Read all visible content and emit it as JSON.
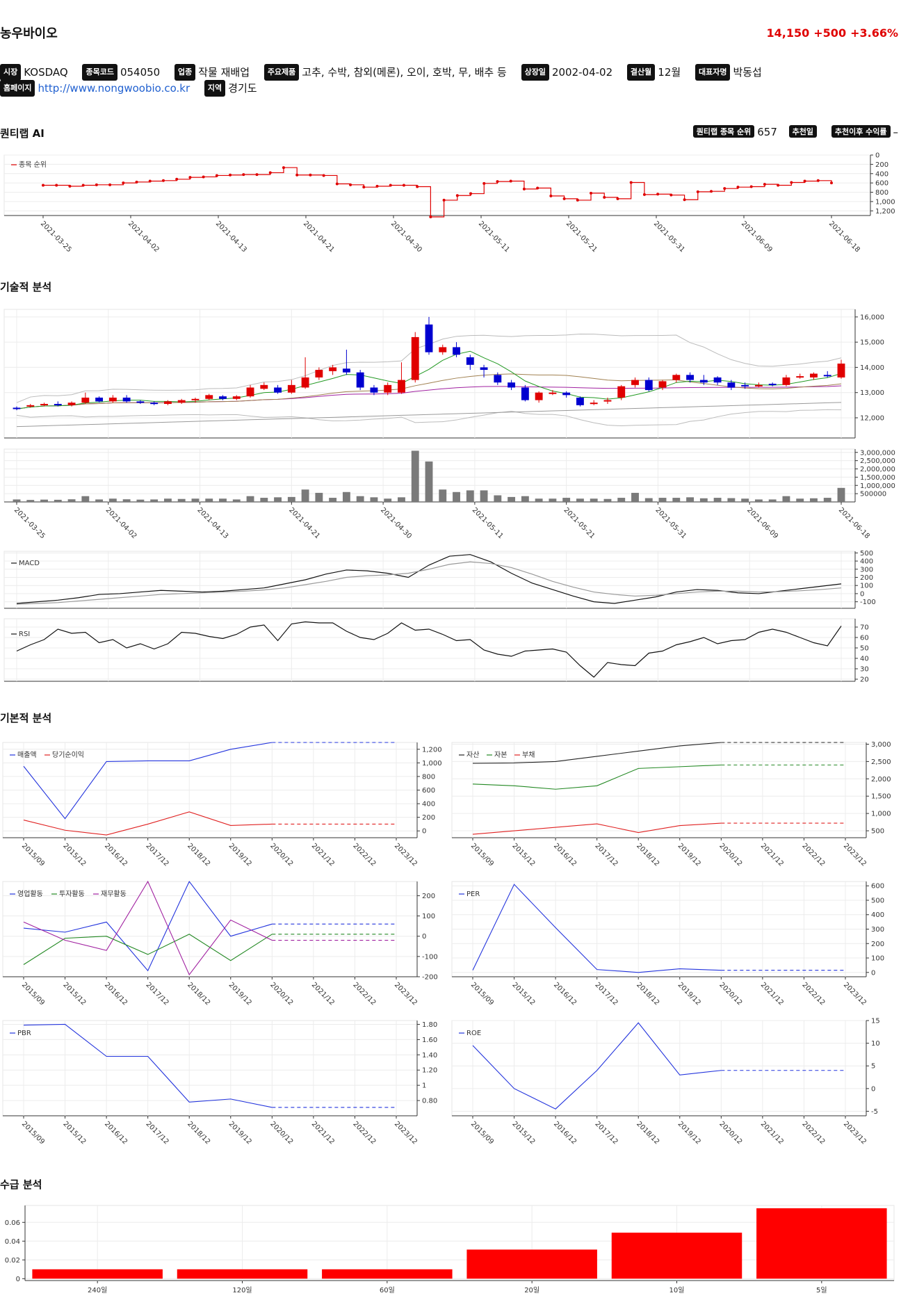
{
  "header": {
    "name": "농우바이오",
    "price": "14,150",
    "change": "+500",
    "change_pct": "+3.66%"
  },
  "info": {
    "market_label": "시장",
    "market": "KOSDAQ",
    "code_label": "종목코드",
    "code": "054050",
    "sector_label": "업종",
    "sector": "작물 재배업",
    "products_label": "주요제품",
    "products": "고추, 수박, 참외(메론), 오이, 호박, 무, 배추 등",
    "listing_label": "상장일",
    "listing": "2002-04-02",
    "fiscal_label": "결산월",
    "fiscal": "12월",
    "ceo_label": "대표자명",
    "ceo": "박동섭",
    "homepage_label": "홈페이지",
    "homepage": "http://www.nongwoobio.co.kr",
    "region_label": "지역",
    "region": "경기도"
  },
  "sections": {
    "quant": "퀀티랩 AI",
    "technical": "기술적 분석",
    "fundamental": "기본적 분석",
    "supply": "수급 분석"
  },
  "quant": {
    "rank_label": "퀀티랩 종목 순위",
    "rank": "657",
    "rec_label": "추천일",
    "rec_value": "",
    "ret_label": "추천이후 수익률",
    "ret_value": "–"
  },
  "colors": {
    "up": "#e00000",
    "down": "#0000d0",
    "accent": "#e00000"
  },
  "chart_data": [
    {
      "id": "rank",
      "type": "line",
      "legend": [
        "종목 순위"
      ],
      "x_ticks": [
        "2021-03-25",
        "2021-04-02",
        "2021-04-13",
        "2021-04-21",
        "2021-04-30",
        "2021-05-11",
        "2021-05-21",
        "2021-05-31",
        "2021-06-09",
        "2021-06-18"
      ],
      "y_ticks": [
        "0",
        "200",
        "400",
        "600",
        "800",
        "1,000",
        "1,200"
      ],
      "ylim": [
        0,
        1300
      ],
      "y_inverted": true,
      "values": [
        650,
        650,
        670,
        650,
        640,
        640,
        600,
        580,
        560,
        550,
        520,
        480,
        470,
        440,
        430,
        420,
        420,
        380,
        270,
        430,
        430,
        440,
        620,
        640,
        690,
        670,
        650,
        650,
        680,
        1330,
        970,
        870,
        830,
        610,
        570,
        560,
        730,
        710,
        880,
        940,
        970,
        820,
        910,
        940,
        590,
        850,
        840,
        860,
        960,
        790,
        780,
        720,
        690,
        680,
        630,
        650,
        590,
        560,
        550,
        600
      ]
    },
    {
      "id": "price",
      "type": "candlestick",
      "x_ticks": [
        "2021-03-25",
        "2021-04-02",
        "2021-04-13",
        "2021-04-21",
        "2021-04-30",
        "2021-05-11",
        "2021-05-21",
        "2021-05-31",
        "2021-06-09",
        "2021-06-18"
      ],
      "y_ticks": [
        "12,000",
        "13,000",
        "14,000",
        "15,000",
        "16,000"
      ],
      "ylim": [
        11200,
        16300
      ],
      "candles": [
        [
          12400,
          12350,
          12450,
          12300
        ],
        [
          12450,
          12500,
          12550,
          12400
        ],
        [
          12500,
          12550,
          12600,
          12450
        ],
        [
          12550,
          12500,
          12650,
          12450
        ],
        [
          12500,
          12600,
          12650,
          12450
        ],
        [
          12600,
          12800,
          13000,
          12550
        ],
        [
          12800,
          12650,
          12850,
          12600
        ],
        [
          12650,
          12800,
          12900,
          12600
        ],
        [
          12800,
          12650,
          12900,
          12600
        ],
        [
          12650,
          12600,
          12700,
          12550
        ],
        [
          12600,
          12550,
          12650,
          12500
        ],
        [
          12550,
          12650,
          12700,
          12500
        ],
        [
          12600,
          12700,
          12750,
          12550
        ],
        [
          12700,
          12750,
          12800,
          12600
        ],
        [
          12750,
          12900,
          12950,
          12700
        ],
        [
          12850,
          12750,
          12900,
          12700
        ],
        [
          12750,
          12850,
          12900,
          12700
        ],
        [
          12850,
          13200,
          13300,
          12800
        ],
        [
          13150,
          13300,
          13400,
          13100
        ],
        [
          13200,
          13000,
          13300,
          12950
        ],
        [
          13000,
          13300,
          13500,
          12950
        ],
        [
          13200,
          13600,
          14400,
          13150
        ],
        [
          13600,
          13900,
          14000,
          13500
        ],
        [
          13850,
          14000,
          14100,
          13700
        ],
        [
          13950,
          13800,
          14700,
          13700
        ],
        [
          13800,
          13200,
          13900,
          13100
        ],
        [
          13200,
          13000,
          13300,
          12900
        ],
        [
          13000,
          13300,
          13400,
          12900
        ],
        [
          13000,
          13500,
          14200,
          12950
        ],
        [
          13500,
          15200,
          15400,
          13400
        ],
        [
          15700,
          14600,
          16000,
          14500
        ],
        [
          14600,
          14800,
          14900,
          14500
        ],
        [
          14800,
          14500,
          15000,
          14400
        ],
        [
          14400,
          14100,
          14500,
          13900
        ],
        [
          14000,
          13900,
          14100,
          13600
        ],
        [
          13700,
          13400,
          13800,
          13300
        ],
        [
          13400,
          13200,
          13500,
          13100
        ],
        [
          13200,
          12700,
          13300,
          12650
        ],
        [
          12700,
          13000,
          13050,
          12600
        ],
        [
          13000,
          13000,
          13100,
          12900
        ],
        [
          13000,
          12900,
          13050,
          12800
        ],
        [
          12800,
          12500,
          12850,
          12450
        ],
        [
          12550,
          12600,
          12700,
          12500
        ],
        [
          12650,
          12700,
          12800,
          12550
        ],
        [
          12800,
          13250,
          13300,
          12700
        ],
        [
          13300,
          13500,
          13600,
          13200
        ],
        [
          13500,
          13100,
          13600,
          13050
        ],
        [
          13200,
          13450,
          13500,
          13100
        ],
        [
          13500,
          13700,
          13750,
          13400
        ],
        [
          13700,
          13500,
          13800,
          13400
        ],
        [
          13500,
          13400,
          13700,
          13300
        ],
        [
          13600,
          13400,
          13650,
          13300
        ],
        [
          13400,
          13200,
          13500,
          13100
        ],
        [
          13300,
          13250,
          13400,
          13150
        ],
        [
          13300,
          13300,
          13400,
          13200
        ],
        [
          13350,
          13300,
          13400,
          13250
        ],
        [
          13300,
          13600,
          13700,
          13250
        ],
        [
          13600,
          13650,
          13750,
          13550
        ],
        [
          13600,
          13750,
          13800,
          13500
        ],
        [
          13700,
          13650,
          13850,
          13600
        ],
        [
          13600,
          14150,
          14300,
          13550
        ]
      ]
    },
    {
      "id": "volume",
      "type": "bar",
      "x_ticks": [
        "2021-03-25",
        "2021-04-02",
        "2021-04-13",
        "2021-04-21",
        "2021-04-30",
        "2021-05-11",
        "2021-05-21",
        "2021-05-31",
        "2021-06-09",
        "2021-06-18"
      ],
      "y_ticks": [
        "500000",
        "1,000,000",
        "1,500,000",
        "2,000,000",
        "2,500,000",
        "3,000,000"
      ],
      "ylim": [
        0,
        3200000
      ],
      "values": [
        150000,
        120000,
        140000,
        130000,
        160000,
        350000,
        150000,
        200000,
        160000,
        140000,
        150000,
        200000,
        180000,
        200000,
        200000,
        200000,
        150000,
        350000,
        250000,
        280000,
        300000,
        750000,
        550000,
        250000,
        600000,
        350000,
        280000,
        200000,
        280000,
        3100000,
        2450000,
        750000,
        600000,
        700000,
        700000,
        400000,
        300000,
        350000,
        200000,
        200000,
        250000,
        200000,
        200000,
        180000,
        250000,
        550000,
        230000,
        250000,
        250000,
        280000,
        220000,
        250000,
        230000,
        200000,
        150000,
        150000,
        350000,
        200000,
        220000,
        250000,
        850000
      ]
    },
    {
      "id": "macd",
      "type": "line",
      "legend": [
        "MACD"
      ],
      "y_ticks": [
        "-100",
        "0",
        "100",
        "200",
        "300",
        "400",
        "500"
      ],
      "ylim": [
        -180,
        520
      ],
      "series": [
        {
          "name": "MACD",
          "values": [
            -120,
            -100,
            -80,
            -50,
            -10,
            0,
            20,
            40,
            30,
            20,
            30,
            50,
            70,
            120,
            170,
            240,
            290,
            280,
            250,
            200,
            350,
            460,
            480,
            390,
            250,
            130,
            50,
            -30,
            -100,
            -120,
            -80,
            -40,
            20,
            50,
            40,
            10,
            0,
            30,
            60,
            90,
            120
          ]
        },
        {
          "name": "signal",
          "values": [
            -130,
            -120,
            -110,
            -90,
            -70,
            -50,
            -30,
            -10,
            0,
            10,
            20,
            30,
            45,
            70,
            110,
            150,
            200,
            220,
            230,
            250,
            300,
            360,
            390,
            370,
            320,
            240,
            150,
            80,
            20,
            -10,
            -30,
            -20,
            0,
            20,
            30,
            30,
            20,
            25,
            35,
            50,
            70
          ]
        }
      ]
    },
    {
      "id": "rsi",
      "type": "line",
      "legend": [
        "RSI"
      ],
      "y_ticks": [
        "20",
        "30",
        "40",
        "50",
        "60",
        "70"
      ],
      "ylim": [
        18,
        78
      ],
      "values": [
        47,
        53,
        58,
        68,
        64,
        65,
        55,
        58,
        50,
        54,
        49,
        54,
        65,
        64,
        61,
        59,
        63,
        70,
        72,
        57,
        73,
        75,
        74,
        74,
        66,
        60,
        58,
        64,
        74,
        67,
        68,
        63,
        57,
        58,
        48,
        44,
        42,
        47,
        48,
        49,
        46,
        33,
        22,
        36,
        34,
        33,
        45,
        47,
        53,
        56,
        60,
        54,
        57,
        58,
        65,
        68,
        65,
        60,
        55,
        52,
        71
      ]
    },
    {
      "id": "sales_profit",
      "type": "line",
      "legend": [
        "매출액",
        "당기순이익"
      ],
      "x_ticks": [
        "2015/09",
        "2015/12",
        "2016/12",
        "2017/12",
        "2018/12",
        "2019/12",
        "2020/12",
        "2021/12",
        "2022/12",
        "2023/12"
      ],
      "y_ticks": [
        "0",
        "200",
        "400",
        "600",
        "800",
        "1,000",
        "1,200"
      ],
      "ylim": [
        -100,
        1300
      ],
      "series": [
        {
          "name": "매출액",
          "values": [
            950,
            180,
            1020,
            1030,
            1030,
            1200,
            1300,
            1300,
            1300,
            1300
          ]
        },
        {
          "name": "당기순이익",
          "values": [
            160,
            10,
            -60,
            100,
            280,
            80,
            100,
            100,
            100,
            100
          ]
        }
      ],
      "forecast_from": 6
    },
    {
      "id": "balance",
      "type": "line",
      "legend": [
        "자산",
        "자본",
        "부채"
      ],
      "x_ticks": [
        "2015/09",
        "2015/12",
        "2016/12",
        "2017/12",
        "2018/12",
        "2019/12",
        "2020/12",
        "2021/12",
        "2022/12",
        "2023/12"
      ],
      "y_ticks": [
        "500",
        "1,000",
        "1,500",
        "2,000",
        "2,500",
        "3,000"
      ],
      "ylim": [
        300,
        3050
      ],
      "series": [
        {
          "name": "자산",
          "values": [
            2450,
            2460,
            2500,
            2650,
            2800,
            2950,
            3050,
            3050,
            3050,
            3050
          ]
        },
        {
          "name": "자본",
          "values": [
            1850,
            1800,
            1700,
            1800,
            2300,
            2350,
            2400,
            2400,
            2400,
            2400
          ]
        },
        {
          "name": "부채",
          "values": [
            400,
            500,
            600,
            700,
            450,
            650,
            720,
            720,
            720,
            720
          ]
        }
      ],
      "forecast_from": 6
    },
    {
      "id": "cashflow",
      "type": "line",
      "legend": [
        "영업활동",
        "투자활동",
        "재무활동"
      ],
      "x_ticks": [
        "2015/09",
        "2015/12",
        "2016/12",
        "2017/12",
        "2018/12",
        "2019/12",
        "2020/12",
        "2021/12",
        "2022/12",
        "2023/12"
      ],
      "y_ticks": [
        "-200",
        "-100",
        "0",
        "100",
        "200"
      ],
      "ylim": [
        -200,
        270
      ],
      "series": [
        {
          "name": "영업활동",
          "values": [
            40,
            20,
            70,
            -170,
            270,
            0,
            60,
            60,
            60,
            60
          ]
        },
        {
          "name": "투자활동",
          "values": [
            -140,
            -10,
            0,
            -90,
            10,
            -120,
            10,
            10,
            10,
            10
          ]
        },
        {
          "name": "재무활동",
          "values": [
            70,
            -20,
            -70,
            270,
            -190,
            80,
            -20,
            -20,
            -20,
            -20
          ]
        }
      ],
      "forecast_from": 6
    },
    {
      "id": "per",
      "type": "line",
      "legend": [
        "PER"
      ],
      "x_ticks": [
        "2015/09",
        "2015/12",
        "2016/12",
        "2017/12",
        "2018/12",
        "2019/12",
        "2020/12",
        "2021/12",
        "2022/12",
        "2023/12"
      ],
      "y_ticks": [
        "0",
        "100",
        "200",
        "300",
        "400",
        "500",
        "600"
      ],
      "ylim": [
        -30,
        630
      ],
      "series": [
        {
          "name": "PER",
          "values": [
            15,
            610,
            310,
            20,
            0,
            25,
            15,
            15,
            15,
            15
          ]
        }
      ],
      "forecast_from": 6
    },
    {
      "id": "pbr",
      "type": "line",
      "legend": [
        "PBR"
      ],
      "x_ticks": [
        "2015/09",
        "2015/12",
        "2016/12",
        "2017/12",
        "2018/12",
        "2019/12",
        "2020/12",
        "2021/12",
        "2022/12",
        "2023/12"
      ],
      "y_ticks": [
        "0.80",
        "1",
        "1.20",
        "1.40",
        "1.60",
        "1.80"
      ],
      "ylim": [
        0.6,
        1.85
      ],
      "series": [
        {
          "name": "PBR",
          "values": [
            1.79,
            1.8,
            1.38,
            1.38,
            0.78,
            0.82,
            0.71,
            0.71,
            0.71,
            0.71
          ]
        }
      ],
      "forecast_from": 6
    },
    {
      "id": "roe",
      "type": "line",
      "legend": [
        "ROE"
      ],
      "x_ticks": [
        "2015/09",
        "2015/12",
        "2016/12",
        "2017/12",
        "2018/12",
        "2019/12",
        "2020/12",
        "2021/12",
        "2022/12",
        "2023/12"
      ],
      "y_ticks": [
        "-5",
        "0",
        "5",
        "10",
        "15"
      ],
      "ylim": [
        -6,
        15
      ],
      "series": [
        {
          "name": "ROE",
          "values": [
            9.5,
            0,
            -4.5,
            4,
            14.5,
            3,
            4,
            4,
            4,
            4
          ]
        }
      ],
      "forecast_from": 6
    },
    {
      "id": "supply",
      "type": "bar",
      "categories": [
        "240일",
        "120일",
        "60일",
        "20일",
        "10일",
        "5일"
      ],
      "values": [
        0.01,
        0.01,
        0.01,
        0.031,
        0.049,
        0.075
      ],
      "y_ticks": [
        "0",
        "0.02",
        "0.04",
        "0.06"
      ],
      "ylim": [
        -0.002,
        0.078
      ]
    }
  ]
}
